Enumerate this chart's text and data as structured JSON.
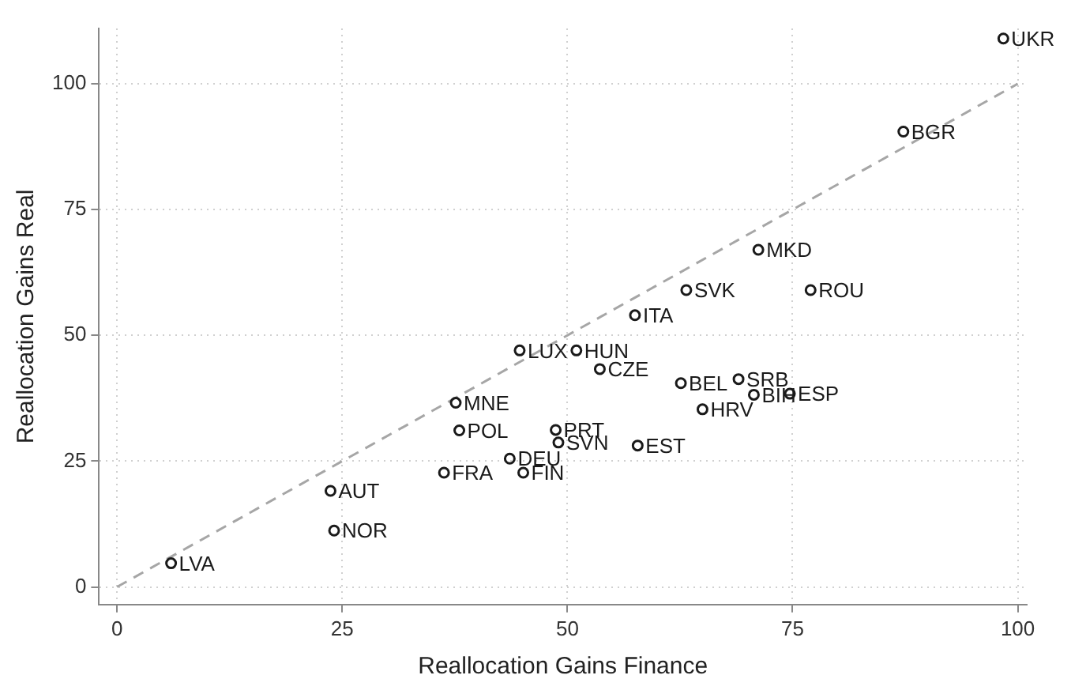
{
  "chart_data": {
    "type": "scatter",
    "xlabel": "Reallocation Gains Finance",
    "ylabel": "Reallocation Gains Real",
    "xlim": [
      -2,
      101
    ],
    "ylim": [
      -3.5,
      111
    ],
    "xticks": [
      0,
      25,
      50,
      75,
      100
    ],
    "yticks": [
      0,
      25,
      50,
      75,
      100
    ],
    "grid": true,
    "legend": false,
    "series": [
      {
        "marker": "circle",
        "color": "#1a1a1a",
        "x": [
          98.4,
          87.3,
          71.2,
          63.2,
          77.0,
          57.5,
          44.7,
          51.0,
          53.6,
          62.6,
          69.0,
          70.7,
          74.7,
          65.0,
          37.6,
          38.0,
          48.7,
          49.0,
          57.8,
          43.6,
          36.3,
          45.1,
          23.7,
          24.1,
          6.0
        ],
        "values": [
          109,
          90.5,
          67,
          59,
          59,
          54,
          47,
          47,
          43.3,
          40.5,
          41.3,
          38.2,
          38.4,
          35.3,
          36.6,
          31.1,
          31.2,
          28.7,
          28.1,
          25.5,
          22.7,
          22.7,
          19.1,
          11.2,
          4.7
        ],
        "value_labels": [
          "UKR",
          "BGR",
          "MKD",
          "SVK",
          "ROU",
          "ITA",
          "LUX",
          "HUN",
          "CZE",
          "BEL",
          "SRB",
          "BIH",
          "ESP",
          "HRV",
          "MNE",
          "POL",
          "PRT",
          "SVN",
          "EST",
          "DEU",
          "FRA",
          "FIN",
          "AUT",
          "NOR",
          "LVA"
        ]
      },
      {
        "type": "line",
        "marker": "none",
        "line_style": "dashed",
        "color": "#a6a6a6",
        "x": [
          0,
          100
        ],
        "values": [
          0,
          100
        ]
      }
    ]
  }
}
